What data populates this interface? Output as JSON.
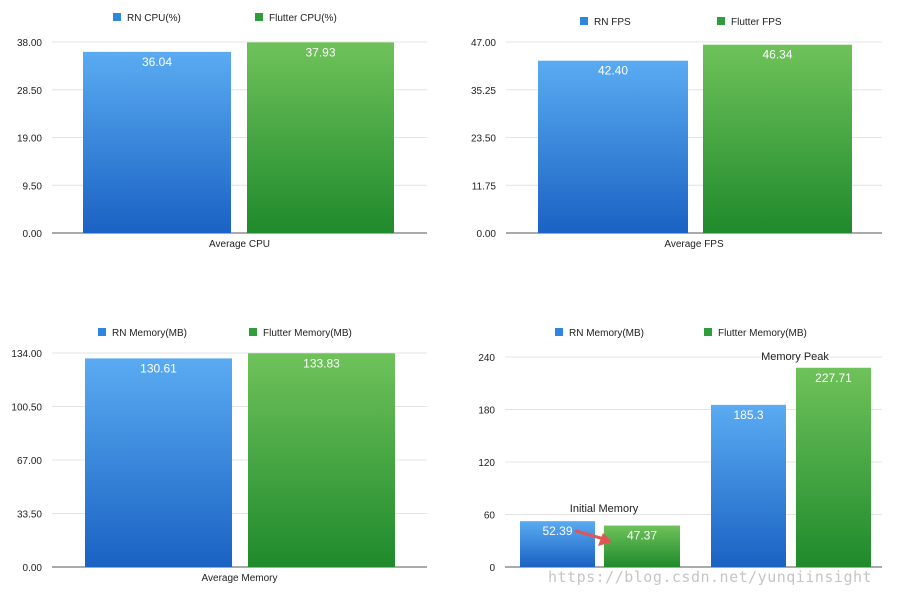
{
  "colors": {
    "rn_top": "#5aabf2",
    "rn_bottom": "#1a62c3",
    "flutter_top": "#6fc25a",
    "flutter_bottom": "#1f8a2c",
    "legend_rn": "#2e86de",
    "legend_flutter": "#2f9e3a",
    "grid": "#e4e4e4",
    "axis": "#555555",
    "label_text": "#ffffff",
    "arrow": "#e05555"
  },
  "chart_data": [
    {
      "type": "bar",
      "categories": [
        "Average CPU"
      ],
      "series": [
        {
          "name": "RN CPU(%)",
          "values": [
            36.04
          ],
          "labels": [
            "36.04"
          ]
        },
        {
          "name": "Flutter CPU(%)",
          "values": [
            37.93
          ],
          "labels": [
            "37.93"
          ]
        }
      ],
      "ylim": [
        0,
        38
      ],
      "yticks": [
        "0.00",
        "9.50",
        "19.00",
        "28.50",
        "38.00"
      ],
      "grid": true,
      "legend": "top"
    },
    {
      "type": "bar",
      "categories": [
        "Average FPS"
      ],
      "series": [
        {
          "name": "RN FPS",
          "values": [
            42.4
          ],
          "labels": [
            "42.40"
          ]
        },
        {
          "name": "Flutter FPS",
          "values": [
            46.34
          ],
          "labels": [
            "46.34"
          ]
        }
      ],
      "ylim": [
        0,
        47
      ],
      "yticks": [
        "0.00",
        "11.75",
        "23.50",
        "35.25",
        "47.00"
      ],
      "grid": true,
      "legend": "top"
    },
    {
      "type": "bar",
      "categories": [
        "Average Memory"
      ],
      "series": [
        {
          "name": "RN Memory(MB)",
          "values": [
            130.61
          ],
          "labels": [
            "130.61"
          ]
        },
        {
          "name": "Flutter Memory(MB)",
          "values": [
            133.83
          ],
          "labels": [
            "133.83"
          ]
        }
      ],
      "ylim": [
        0,
        134
      ],
      "yticks": [
        "0.00",
        "33.50",
        "67.00",
        "100.50",
        "134.00"
      ],
      "grid": true,
      "legend": "top"
    },
    {
      "type": "bar",
      "categories": [
        "Initial Memory",
        "Memory Peak"
      ],
      "series": [
        {
          "name": "RN Memory(MB)",
          "values": [
            52.39,
            185.3
          ],
          "labels": [
            "52.39",
            "185.3"
          ]
        },
        {
          "name": "Flutter Memory(MB)",
          "values": [
            47.37,
            227.71
          ],
          "labels": [
            "47.37",
            "227.71"
          ]
        }
      ],
      "ylim": [
        0,
        240
      ],
      "yticks": [
        "0",
        "60",
        "120",
        "180",
        "240"
      ],
      "grid": true,
      "legend": "top",
      "annotations": [
        "Initial Memory",
        "Memory Peak"
      ]
    }
  ],
  "watermark": "https://blog.csdn.net/yunqiinsight"
}
